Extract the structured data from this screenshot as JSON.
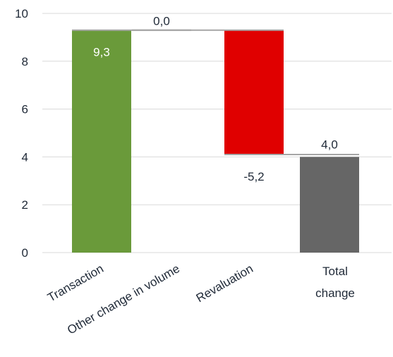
{
  "chart_data": {
    "type": "bar",
    "subtype": "waterfall",
    "categories": [
      "Transaction",
      "Other change in volume",
      "Revaluation",
      "Total change"
    ],
    "values": [
      9.3,
      0.0,
      -5.2,
      4.0
    ],
    "data_labels": [
      "9,3",
      "0,0",
      "-5,2",
      "4,0"
    ],
    "kinds": [
      "delta",
      "delta",
      "delta",
      "total"
    ],
    "category_labels": [
      [
        "Transaction"
      ],
      [
        "Other change in volume"
      ],
      [
        "Revaluation"
      ],
      [
        "Total",
        "change"
      ]
    ],
    "category_rotated": [
      true,
      true,
      true,
      false
    ],
    "ylim": [
      0,
      10
    ],
    "yticks": [
      0,
      2,
      4,
      6,
      8,
      10
    ],
    "ytick_labels": [
      "0",
      "2",
      "4",
      "6",
      "8",
      "10"
    ],
    "grid": true,
    "colors": [
      "#6a9a3a",
      "#ffffff",
      "#e00000",
      "#666666"
    ],
    "title": "",
    "xlabel": "",
    "ylabel": ""
  }
}
